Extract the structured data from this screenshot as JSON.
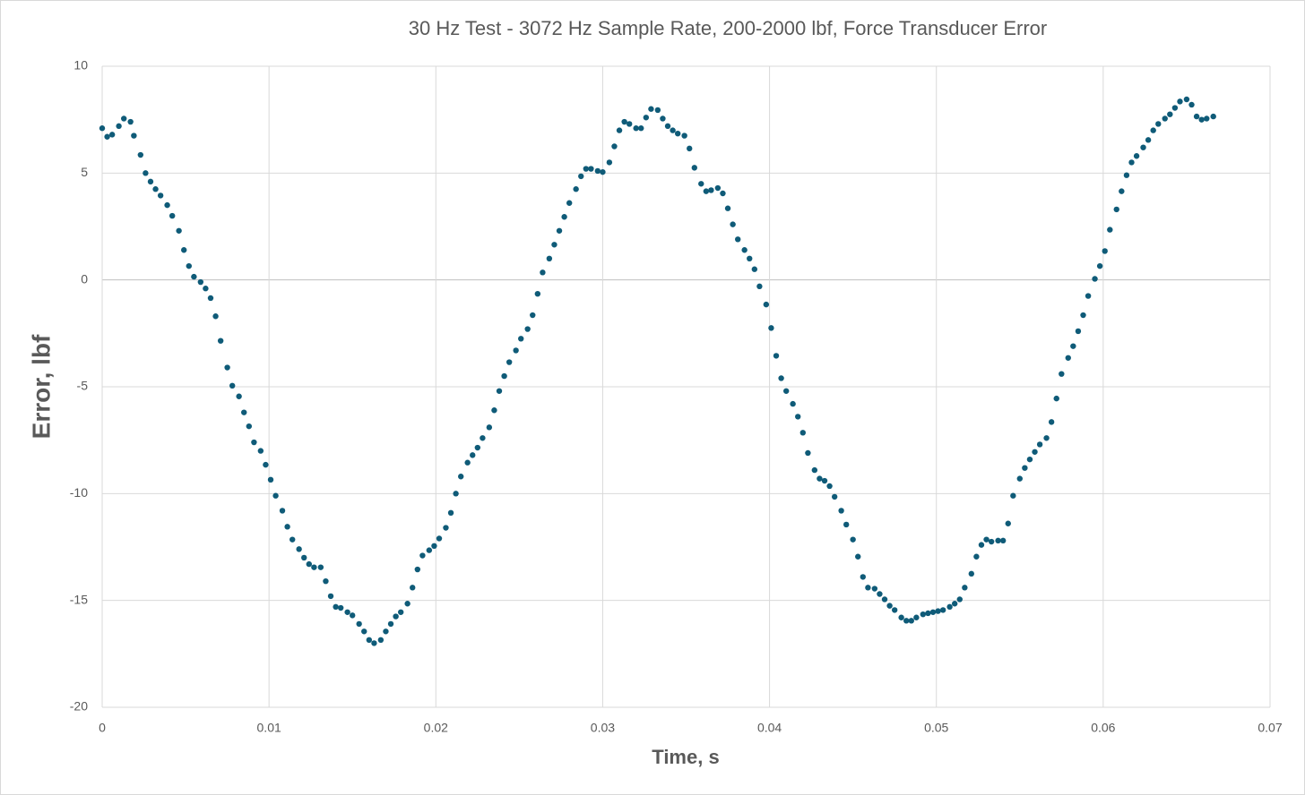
{
  "chart_data": {
    "type": "scatter",
    "title": "30 Hz Test - 3072 Hz Sample Rate, 200-2000 lbf, Force Transducer Error",
    "x_label": "Time, s",
    "y_label": "Error, lbf",
    "color": "#0f5b78",
    "grid": true,
    "xlim": [
      0,
      0.07
    ],
    "xticks": [
      0,
      0.01,
      0.02,
      0.03,
      0.04,
      0.05,
      0.06,
      0.07
    ],
    "ylim": [
      -20,
      10
    ],
    "yticks": [
      -20,
      -15,
      -10,
      -5,
      0,
      5,
      10
    ],
    "x": [
      0,
      0.0003,
      0.0006,
      0.001,
      0.0013,
      0.0017,
      0.0019,
      0.0023,
      0.0026,
      0.0029,
      0.0032,
      0.0035,
      0.0039,
      0.0042,
      0.0046,
      0.0049,
      0.0052,
      0.0055,
      0.0059,
      0.0062,
      0.0065,
      0.0068,
      0.0071,
      0.0075,
      0.0078,
      0.0082,
      0.0085,
      0.0088,
      0.0091,
      0.0095,
      0.0098,
      0.0101,
      0.0104,
      0.0108,
      0.0111,
      0.0114,
      0.0118,
      0.0121,
      0.0124,
      0.0127,
      0.0131,
      0.0134,
      0.0137,
      0.014,
      0.0143,
      0.0147,
      0.015,
      0.0154,
      0.0157,
      0.016,
      0.0163,
      0.0167,
      0.017,
      0.0173,
      0.0176,
      0.0179,
      0.0183,
      0.0186,
      0.0189,
      0.0192,
      0.0196,
      0.0199,
      0.0202,
      0.0206,
      0.0209,
      0.0212,
      0.0215,
      0.0219,
      0.0222,
      0.0225,
      0.0228,
      0.0232,
      0.0235,
      0.0238,
      0.0241,
      0.0244,
      0.0248,
      0.0251,
      0.0255,
      0.0258,
      0.0261,
      0.0264,
      0.0268,
      0.0271,
      0.0274,
      0.0277,
      0.028,
      0.0284,
      0.0287,
      0.029,
      0.0293,
      0.0297,
      0.03,
      0.0304,
      0.0307,
      0.031,
      0.0313,
      0.0316,
      0.032,
      0.0323,
      0.0326,
      0.0329,
      0.0333,
      0.0336,
      0.0339,
      0.0342,
      0.0345,
      0.0349,
      0.0352,
      0.0355,
      0.0359,
      0.0362,
      0.0365,
      0.0369,
      0.0372,
      0.0375,
      0.0378,
      0.0381,
      0.0385,
      0.0388,
      0.0391,
      0.0394,
      0.0398,
      0.0401,
      0.0404,
      0.0407,
      0.041,
      0.0414,
      0.0417,
      0.042,
      0.0423,
      0.0427,
      0.043,
      0.0433,
      0.0436,
      0.0439,
      0.0443,
      0.0446,
      0.045,
      0.0453,
      0.0456,
      0.0459,
      0.0463,
      0.0466,
      0.0469,
      0.0472,
      0.0475,
      0.0479,
      0.0482,
      0.0485,
      0.0488,
      0.0492,
      0.0495,
      0.0498,
      0.0501,
      0.0504,
      0.0508,
      0.0511,
      0.0514,
      0.0517,
      0.0521,
      0.0524,
      0.0527,
      0.053,
      0.0533,
      0.0537,
      0.054,
      0.0543,
      0.0546,
      0.055,
      0.0553,
      0.0556,
      0.0559,
      0.0562,
      0.0566,
      0.0569,
      0.0572,
      0.0575,
      0.0579,
      0.0582,
      0.0585,
      0.0588,
      0.0591,
      0.0595,
      0.0598,
      0.0601,
      0.0604,
      0.0608,
      0.0611,
      0.0614,
      0.0617,
      0.062,
      0.0624,
      0.0627,
      0.063,
      0.0633,
      0.0637,
      0.064,
      0.0643,
      0.0646,
      0.065,
      0.0653,
      0.0656,
      0.0659,
      0.0662,
      0.0666
    ],
    "values": [
      7.1,
      6.7,
      6.8,
      7.2,
      7.55,
      7.4,
      6.75,
      5.85,
      5.0,
      4.6,
      4.25,
      3.95,
      3.5,
      3.0,
      2.3,
      1.4,
      0.65,
      0.15,
      -0.1,
      -0.4,
      -0.85,
      -1.7,
      -2.85,
      -4.1,
      -4.95,
      -5.45,
      -6.2,
      -6.85,
      -7.6,
      -8.0,
      -8.65,
      -9.35,
      -10.1,
      -10.8,
      -11.55,
      -12.15,
      -12.6,
      -13.0,
      -13.3,
      -13.45,
      -13.45,
      -14.1,
      -14.8,
      -15.3,
      -15.35,
      -15.55,
      -15.7,
      -16.1,
      -16.45,
      -16.85,
      -17.0,
      -16.85,
      -16.45,
      -16.1,
      -15.75,
      -15.55,
      -15.15,
      -14.4,
      -13.55,
      -12.9,
      -12.65,
      -12.45,
      -12.1,
      -11.6,
      -10.9,
      -10.0,
      -9.2,
      -8.55,
      -8.2,
      -7.85,
      -7.4,
      -6.9,
      -6.1,
      -5.2,
      -4.5,
      -3.85,
      -3.3,
      -2.75,
      -2.3,
      -1.65,
      -0.65,
      0.35,
      1.0,
      1.65,
      2.3,
      2.95,
      3.6,
      4.25,
      4.85,
      5.2,
      5.2,
      5.1,
      5.05,
      5.5,
      6.25,
      7.0,
      7.4,
      7.3,
      7.1,
      7.1,
      7.6,
      8.0,
      7.95,
      7.55,
      7.2,
      7.0,
      6.85,
      6.75,
      6.15,
      5.25,
      4.5,
      4.15,
      4.2,
      4.3,
      4.05,
      3.35,
      2.6,
      1.9,
      1.4,
      1.0,
      0.5,
      -0.3,
      -1.15,
      -2.25,
      -3.55,
      -4.6,
      -5.2,
      -5.8,
      -6.4,
      -7.15,
      -8.1,
      -8.9,
      -9.3,
      -9.4,
      -9.65,
      -10.15,
      -10.8,
      -11.45,
      -12.15,
      -12.95,
      -13.9,
      -14.4,
      -14.45,
      -14.7,
      -14.95,
      -15.25,
      -15.45,
      -15.8,
      -15.95,
      -15.95,
      -15.8,
      -15.65,
      -15.6,
      -15.55,
      -15.5,
      -15.45,
      -15.3,
      -15.15,
      -14.95,
      -14.4,
      -13.75,
      -12.95,
      -12.4,
      -12.15,
      -12.25,
      -12.2,
      -12.2,
      -11.4,
      -10.1,
      -9.3,
      -8.8,
      -8.4,
      -8.05,
      -7.7,
      -7.4,
      -6.65,
      -5.55,
      -4.4,
      -3.65,
      -3.1,
      -2.4,
      -1.65,
      -0.75,
      0.05,
      0.65,
      1.35,
      2.35,
      3.3,
      4.15,
      4.9,
      5.5,
      5.8,
      6.2,
      6.55,
      7.0,
      7.3,
      7.55,
      7.75,
      8.05,
      8.35,
      8.45,
      8.2,
      7.65,
      7.5,
      7.55,
      7.65
    ]
  }
}
